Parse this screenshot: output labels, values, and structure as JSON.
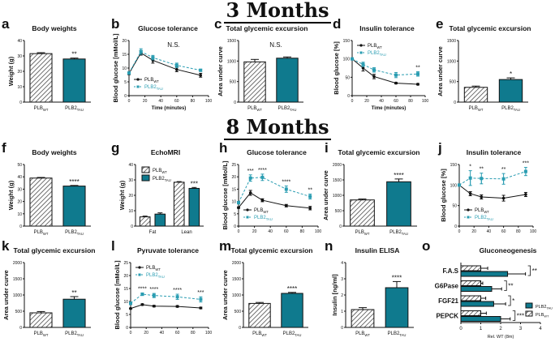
{
  "sections": {
    "three": "3 Months",
    "eight": "8 Months"
  },
  "colors": {
    "tau": "#0f7a8e",
    "tau_line": "#2a9db2",
    "wt": "#111111"
  },
  "chart_data": [
    {
      "panel": "a",
      "type": "bar",
      "title": "Body weights",
      "ylabel": "Weight (g)",
      "ylim": [
        0,
        40
      ],
      "ystep": 10,
      "categories": [
        {
          "text": "PLB",
          "sub": "WT"
        },
        {
          "text": "PLB2",
          "sub": "TAU"
        }
      ],
      "values": [
        31.5,
        28
      ],
      "errors": [
        0.6,
        0.6
      ],
      "stars": [
        "",
        "**"
      ]
    },
    {
      "panel": "b",
      "type": "line",
      "title": "Glucose tolerance",
      "ylabel": "Blood glucose [mMol/L]",
      "xlabel": "Time (minutes)",
      "ylim": [
        0,
        20
      ],
      "ystep": 5,
      "xlim": [
        0,
        100
      ],
      "xstep": 20,
      "annotation": "N.S.",
      "legend": "bottom-left",
      "x": [
        0,
        15,
        30,
        60,
        90
      ],
      "series": [
        {
          "name": {
            "text": "PLB",
            "sub": "WT"
          },
          "values": [
            8,
            15.5,
            12.8,
            9.5,
            7.4
          ],
          "errors": [
            0.4,
            0.8,
            1,
            0.8,
            0.7
          ]
        },
        {
          "name": {
            "text": "PLB2",
            "sub": "TAU"
          },
          "values": [
            8.2,
            16,
            13.8,
            11,
            9.2
          ],
          "errors": [
            0.4,
            1,
            0.8,
            0.8,
            0.4
          ]
        }
      ],
      "stars": [
        "",
        "",
        "",
        "",
        ""
      ]
    },
    {
      "panel": "c",
      "type": "bar",
      "title": "Total glycemic excursion",
      "ylabel": "Area under curve",
      "ylim": [
        0,
        1500
      ],
      "ystep": 500,
      "annotation": "N.S.",
      "categories": [
        {
          "text": "PLB",
          "sub": "WT"
        },
        {
          "text": "PLB2",
          "sub": "TAU"
        }
      ],
      "values": [
        980,
        1070
      ],
      "errors": [
        60,
        30
      ],
      "stars": [
        "",
        ""
      ]
    },
    {
      "panel": "d",
      "type": "line",
      "title": "Insulin tolerance",
      "ylabel": "Blood glucose [%]",
      "xlabel": "Time (minutes)",
      "ylim": [
        0,
        150
      ],
      "ystep": 50,
      "xlim": [
        0,
        100
      ],
      "xstep": 20,
      "legend": "top-left",
      "x": [
        0,
        15,
        30,
        60,
        90
      ],
      "series": [
        {
          "name": {
            "text": "PLB",
            "sub": "WT"
          },
          "values": [
            100,
            75,
            52,
            34,
            31
          ],
          "errors": [
            0,
            8,
            6,
            2,
            2
          ]
        },
        {
          "name": {
            "text": "PLB2",
            "sub": "TAU"
          },
          "values": [
            100,
            85,
            70,
            56,
            59
          ],
          "errors": [
            0,
            6,
            6,
            7,
            6
          ]
        }
      ],
      "stars": [
        "",
        "",
        "",
        "",
        "**"
      ]
    },
    {
      "panel": "e",
      "type": "bar",
      "title": "Total glycemic excursion",
      "ylabel": "Area under curve",
      "ylim": [
        0,
        1500
      ],
      "ystep": 500,
      "categories": [
        {
          "text": "PLB",
          "sub": "WT"
        },
        {
          "text": "PLB2",
          "sub": "TAU"
        }
      ],
      "values": [
        360,
        550
      ],
      "errors": [
        30,
        40
      ],
      "stars": [
        "",
        "*"
      ]
    },
    {
      "panel": "f",
      "type": "bar",
      "title": "Body weights",
      "ylabel": "Weight (g)",
      "ylim": [
        0,
        50
      ],
      "ystep": 10,
      "categories": [
        {
          "text": "PLB",
          "sub": "WT"
        },
        {
          "text": "PLB2",
          "sub": "TAU"
        }
      ],
      "values": [
        39,
        32.5
      ],
      "errors": [
        0.5,
        0.5
      ],
      "stars": [
        "",
        "****"
      ]
    },
    {
      "panel": "g",
      "type": "grouped-bar",
      "title": "EchoMRI",
      "ylabel": "Weight (g)",
      "ylim": [
        0,
        40
      ],
      "ystep": 10,
      "legend": "top-left",
      "categories": [
        "Fat",
        "Lean"
      ],
      "series": [
        {
          "name": {
            "text": "PLB",
            "sub": "WT"
          },
          "values": [
            6,
            28.5
          ],
          "errors": [
            0.5,
            0.4
          ]
        },
        {
          "name": {
            "text": "PLB2",
            "sub": "TAU"
          },
          "values": [
            7.8,
            24.5
          ],
          "errors": [
            0.8,
            0.6
          ]
        }
      ],
      "stars": [
        "",
        "***"
      ]
    },
    {
      "panel": "h",
      "type": "line",
      "title": "Glucose tolerance",
      "ylabel": "Blood glucose [mMol/L]",
      "ylim": [
        0,
        25
      ],
      "ystep": 5,
      "xlim": [
        0,
        100
      ],
      "xstep": 20,
      "legend": "bottom-left",
      "x": [
        0,
        15,
        30,
        60,
        90
      ],
      "series": [
        {
          "name": {
            "text": "PLB",
            "sub": "WT"
          },
          "values": [
            7.5,
            13.5,
            10.5,
            8.3,
            7.3
          ],
          "errors": [
            0.3,
            1,
            0.6,
            0.5,
            0.7
          ]
        },
        {
          "name": {
            "text": "PLB2",
            "sub": "TAU"
          },
          "values": [
            9.5,
            19.5,
            19.8,
            15,
            12
          ],
          "errors": [
            0.5,
            1.3,
            1.3,
            1.3,
            1
          ]
        }
      ],
      "stars": [
        "",
        "***",
        "****",
        "****",
        "**"
      ]
    },
    {
      "panel": "i",
      "type": "bar",
      "title": "Total glycemic excursion",
      "ylabel": "Area under curve",
      "ylim": [
        0,
        2000
      ],
      "ystep": 500,
      "categories": [
        {
          "text": "PLB",
          "sub": "WT"
        },
        {
          "text": "PLB2",
          "sub": "TAU"
        }
      ],
      "values": [
        850,
        1440
      ],
      "errors": [
        30,
        90
      ],
      "stars": [
        "",
        "****"
      ]
    },
    {
      "panel": "j",
      "type": "line",
      "title": "Insulin tolerance",
      "ylabel": "Blood glucose [%]",
      "ylim": [
        0,
        150
      ],
      "ystep": 50,
      "xlim": [
        0,
        100
      ],
      "xstep": 20,
      "legend": "bottom-left",
      "x": [
        0,
        15,
        30,
        60,
        90
      ],
      "series": [
        {
          "name": {
            "text": "PLB",
            "sub": "WT"
          },
          "values": [
            100,
            79,
            71,
            68,
            77
          ],
          "errors": [
            0,
            5,
            5,
            7,
            5
          ]
        },
        {
          "name": {
            "text": "PLB2",
            "sub": "TAU"
          },
          "values": [
            100,
            117,
            116,
            115,
            133
          ],
          "errors": [
            0,
            18,
            13,
            13,
            10
          ]
        }
      ],
      "stars": [
        "",
        "*",
        "**",
        "**",
        "***"
      ]
    },
    {
      "panel": "k",
      "type": "bar",
      "title": "Total glycemic excursion",
      "ylabel": "Area under curve",
      "ylim": [
        0,
        2000
      ],
      "ystep": 500,
      "categories": [
        {
          "text": "PLB",
          "sub": "WT"
        },
        {
          "text": "PLB2",
          "sub": "TAU"
        }
      ],
      "values": [
        450,
        870
      ],
      "errors": [
        40,
        80
      ],
      "stars": [
        "",
        "**"
      ]
    },
    {
      "panel": "l",
      "type": "line",
      "title": "Pyruvate tolerance",
      "ylabel": "Blood glucose [mMol/L]",
      "ylim": [
        0,
        25
      ],
      "ystep": 5,
      "xlim": [
        0,
        100
      ],
      "xstep": 20,
      "legend": "top-left",
      "x": [
        0,
        15,
        30,
        60,
        90
      ],
      "series": [
        {
          "name": {
            "text": "PLB",
            "sub": "WT"
          },
          "values": [
            7.3,
            8.8,
            8.2,
            8.1,
            7.5
          ],
          "errors": [
            0.2,
            0.3,
            0.3,
            0.3,
            0.3
          ]
        },
        {
          "name": {
            "text": "PLB2",
            "sub": "TAU"
          },
          "values": [
            9.3,
            12.8,
            12.3,
            11.8,
            10.8
          ],
          "errors": [
            0.5,
            0.5,
            0.8,
            1,
            1
          ]
        }
      ],
      "stars": [
        "",
        "****",
        "****",
        "****",
        "***"
      ]
    },
    {
      "panel": "m",
      "type": "bar",
      "title": "Total glycemic excursion",
      "ylabel": "Area under curve",
      "ylim": [
        0,
        2000
      ],
      "ystep": 500,
      "categories": [
        {
          "text": "PLB",
          "sub": "WT"
        },
        {
          "text": "PLB2",
          "sub": "TAU"
        }
      ],
      "values": [
        740,
        1050
      ],
      "errors": [
        30,
        30
      ],
      "stars": [
        "",
        "****"
      ]
    },
    {
      "panel": "n",
      "type": "bar",
      "title": "Insulin ELISA",
      "ylabel": "Insulin [ng/ml]",
      "ylim": [
        0,
        4
      ],
      "ystep": 1,
      "categories": [
        {
          "text": "PLB",
          "sub": "WT"
        },
        {
          "text": "PLB2",
          "sub": "TAU"
        }
      ],
      "values": [
        1.1,
        2.45
      ],
      "errors": [
        0.12,
        0.38
      ],
      "stars": [
        "",
        "****"
      ]
    },
    {
      "panel": "o",
      "type": "hbar",
      "title": "Gluconeogenesis",
      "xlabel": "Rel. WT (8m)",
      "xlim": [
        0,
        4
      ],
      "xstep": 1,
      "legend": "bottom-right",
      "categories": [
        "F.A.S",
        "G6Pase",
        "FGF21",
        "PEPCK"
      ],
      "series": [
        {
          "name": {
            "text": "PLB",
            "sub": "WT"
          },
          "values": [
            1,
            1,
            1,
            1
          ],
          "errors": [
            0.35,
            0.1,
            0.25,
            0.28
          ]
        },
        {
          "name": {
            "text": "PLB2",
            "sub": "TAU"
          },
          "values": [
            2.35,
            1.55,
            1.65,
            2.0
          ],
          "errors": [
            0.9,
            0.5,
            0.6,
            0.48
          ]
        }
      ],
      "stars": [
        "**",
        "**",
        "*",
        "***"
      ]
    }
  ]
}
